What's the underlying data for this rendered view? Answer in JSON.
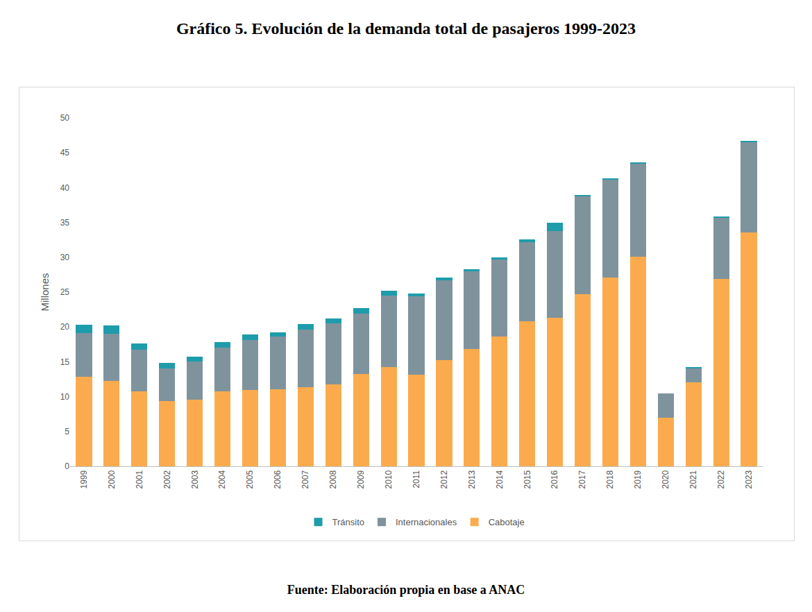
{
  "chart_data": {
    "type": "bar",
    "title": "Gráfico 5. Evolución de la demanda total de pasajeros 1999-2023",
    "source": "Fuente: Elaboración propia en base a ANAC",
    "y_label": "Millones",
    "categories": [
      "1999",
      "2000",
      "2001",
      "2002",
      "2003",
      "2004",
      "2005",
      "2006",
      "2007",
      "2008",
      "2009",
      "2010",
      "2011",
      "2012",
      "2013",
      "2014",
      "2015",
      "2016",
      "2017",
      "2018",
      "2019",
      "2020",
      "2021",
      "2022",
      "2023"
    ],
    "series": [
      {
        "name": "Cabotaje",
        "color": "#fbab4d",
        "values": [
          12.8,
          12.3,
          10.8,
          9.4,
          9.6,
          10.8,
          11.0,
          11.1,
          11.4,
          11.8,
          13.2,
          14.2,
          13.1,
          15.2,
          16.8,
          18.6,
          20.8,
          21.3,
          24.7,
          27.1,
          30.1,
          7.0,
          12.1,
          26.9,
          33.6
        ]
      },
      {
        "name": "Internacionales",
        "color": "#7f939d",
        "values": [
          6.3,
          6.7,
          5.9,
          4.6,
          5.4,
          6.2,
          7.1,
          7.5,
          8.2,
          8.7,
          8.7,
          10.3,
          11.3,
          11.5,
          11.2,
          11.1,
          11.4,
          12.5,
          14.1,
          14.1,
          13.4,
          3.5,
          2.0,
          8.8,
          13.0
        ]
      },
      {
        "name": "Tránsito",
        "color": "#1e9cab",
        "values": [
          1.2,
          1.2,
          0.9,
          0.8,
          0.7,
          0.8,
          0.8,
          0.6,
          0.8,
          0.7,
          0.8,
          0.7,
          0.4,
          0.4,
          0.3,
          0.3,
          0.4,
          1.2,
          0.1,
          0.05,
          0.1,
          0.0,
          0.1,
          0.1,
          0.1
        ]
      }
    ],
    "ylim": [
      0,
      50
    ],
    "yticks": [
      0,
      5,
      10,
      15,
      20,
      25,
      30,
      35,
      40,
      45,
      50
    ],
    "stacked": true,
    "grid": false,
    "legend": "bottom"
  }
}
